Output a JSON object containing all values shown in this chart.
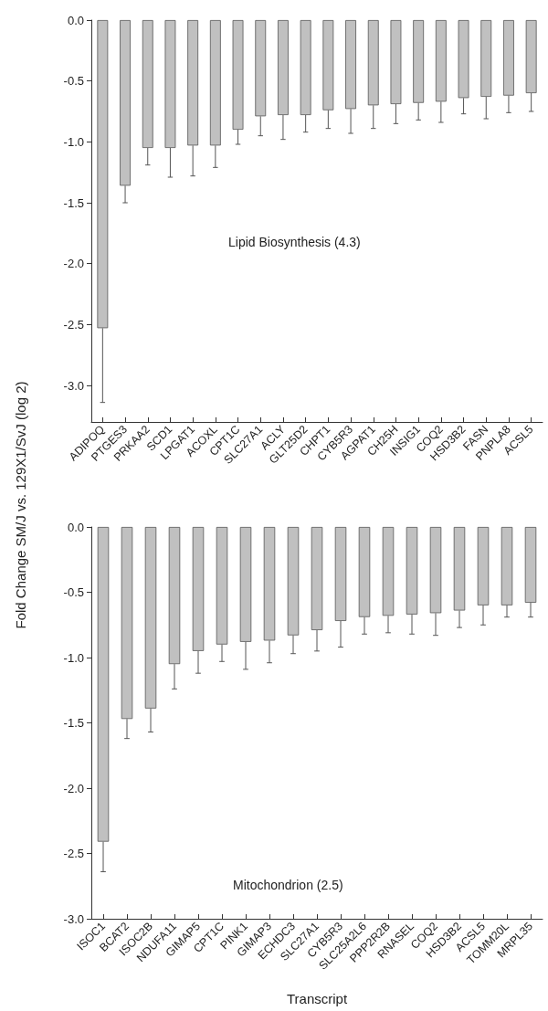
{
  "chart_data": [
    {
      "type": "bar",
      "ylabel": "Fold Change SM/J vs. 129X1/SvJ (log 2)",
      "annotations": [
        "Lipid Biosynthesis (4.3)"
      ],
      "categories": [
        "ADIPOQ",
        "PTGES3",
        "PRKAA2",
        "SCD1",
        "LPGAT1",
        "ACOXL",
        "CPT1C",
        "SLC27A1",
        "ACLY",
        "GLT25D2",
        "CHPT1",
        "CYB5R3",
        "AGPAT1",
        "CH25H",
        "INSIG1",
        "COQ2",
        "HSD3B2",
        "FASN",
        "PNPLA8",
        "ACSL5"
      ],
      "values": [
        -2.53,
        -1.36,
        -1.05,
        -1.05,
        -1.03,
        -1.03,
        -0.9,
        -0.79,
        -0.78,
        -0.78,
        -0.74,
        -0.73,
        -0.7,
        -0.69,
        -0.68,
        -0.67,
        -0.64,
        -0.63,
        -0.62,
        -0.6
      ],
      "errors": [
        0.61,
        0.14,
        0.14,
        0.24,
        0.25,
        0.18,
        0.12,
        0.16,
        0.2,
        0.14,
        0.15,
        0.2,
        0.19,
        0.16,
        0.14,
        0.17,
        0.13,
        0.18,
        0.14,
        0.15
      ],
      "color": "#c0c0c0",
      "ylim": [
        -3.3,
        0
      ],
      "yticks": [
        {
          "value": -3,
          "label": "-3.0"
        },
        {
          "value": -2.5,
          "label": "-2.5"
        },
        {
          "value": -2,
          "label": "-2.0"
        },
        {
          "value": -1.5,
          "label": "-1.5"
        },
        {
          "value": -1,
          "label": "-1.0"
        },
        {
          "value": -0.5,
          "label": "-0.5"
        },
        {
          "value": 0,
          "label": "0.0"
        }
      ],
      "grid": false
    },
    {
      "type": "bar",
      "xlabel": "Transcript",
      "annotations": [
        "Mitochondrion (2.5)"
      ],
      "categories": [
        "ISOC1",
        "BCAT2",
        "ISOC2B",
        "NDUFA11",
        "GIMAP5",
        "CPT1C",
        "PINK1",
        "GIMAP3",
        "ECHDC3",
        "SLC27A1",
        "CYB5R3",
        "SLC25A2L6",
        "PPP2R2B",
        "RNASEL",
        "COQ2",
        "HSD3B2",
        "ACSL5",
        "TOMM20L",
        "MRPL35"
      ],
      "values": [
        -2.41,
        -1.47,
        -1.39,
        -1.05,
        -0.95,
        -0.9,
        -0.88,
        -0.87,
        -0.83,
        -0.79,
        -0.72,
        -0.69,
        -0.68,
        -0.67,
        -0.66,
        -0.64,
        -0.6,
        -0.6,
        -0.58
      ],
      "errors": [
        0.23,
        0.15,
        0.18,
        0.19,
        0.17,
        0.13,
        0.21,
        0.17,
        0.14,
        0.16,
        0.2,
        0.13,
        0.13,
        0.15,
        0.17,
        0.13,
        0.15,
        0.09,
        0.11
      ],
      "color": "#c0c0c0",
      "ylim": [
        -3,
        0
      ],
      "yticks": [
        {
          "value": -3,
          "label": "-3.0"
        },
        {
          "value": -2.5,
          "label": "-2.5"
        },
        {
          "value": -2,
          "label": "-2.0"
        },
        {
          "value": -1.5,
          "label": "-1.5"
        },
        {
          "value": -1,
          "label": "-1.0"
        },
        {
          "value": -0.5,
          "label": "-0.5"
        },
        {
          "value": 0,
          "label": "0.0"
        }
      ],
      "grid": false
    }
  ]
}
